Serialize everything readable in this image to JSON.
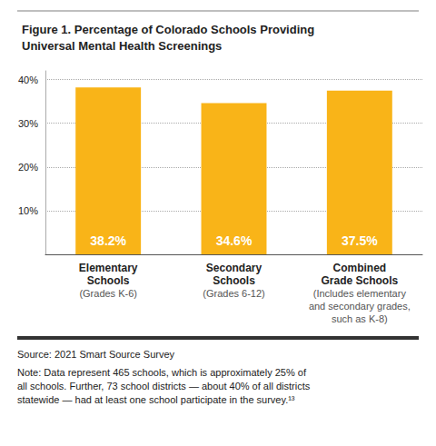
{
  "chart_data": {
    "type": "bar",
    "title": "Figure 1. Percentage of Colorado Schools Providing\nUniversal Mental Health Screenings",
    "categories": [
      "Elementary\nSchools",
      "Secondary\nSchools",
      "Combined\nGrade Schools"
    ],
    "category_subtitles": [
      "(Grades K-6)",
      "(Grades 6-12)",
      "(Includes elementary\nand secondary grades,\nsuch as K-8)"
    ],
    "values": [
      38.2,
      34.6,
      37.5
    ],
    "value_labels": [
      "38.2%",
      "34.6%",
      "37.5%"
    ],
    "data_labels": true,
    "color": "#F9B418",
    "ylim": [
      0,
      42
    ],
    "yticks": [
      {
        "value": 10,
        "label": "10%"
      },
      {
        "value": 20,
        "label": "20%"
      },
      {
        "value": 30,
        "label": "30%"
      },
      {
        "value": 40,
        "label": "40%"
      }
    ],
    "grid": true,
    "annotations": [
      "Source: 2021 Smart Source Survey",
      "Note: Data represent 465 schools, which is approximately 25% of\nall schools. Further, 73 school districts — about 40% of all districts\nstatewide — had at least one school participate in the survey.¹³"
    ]
  }
}
